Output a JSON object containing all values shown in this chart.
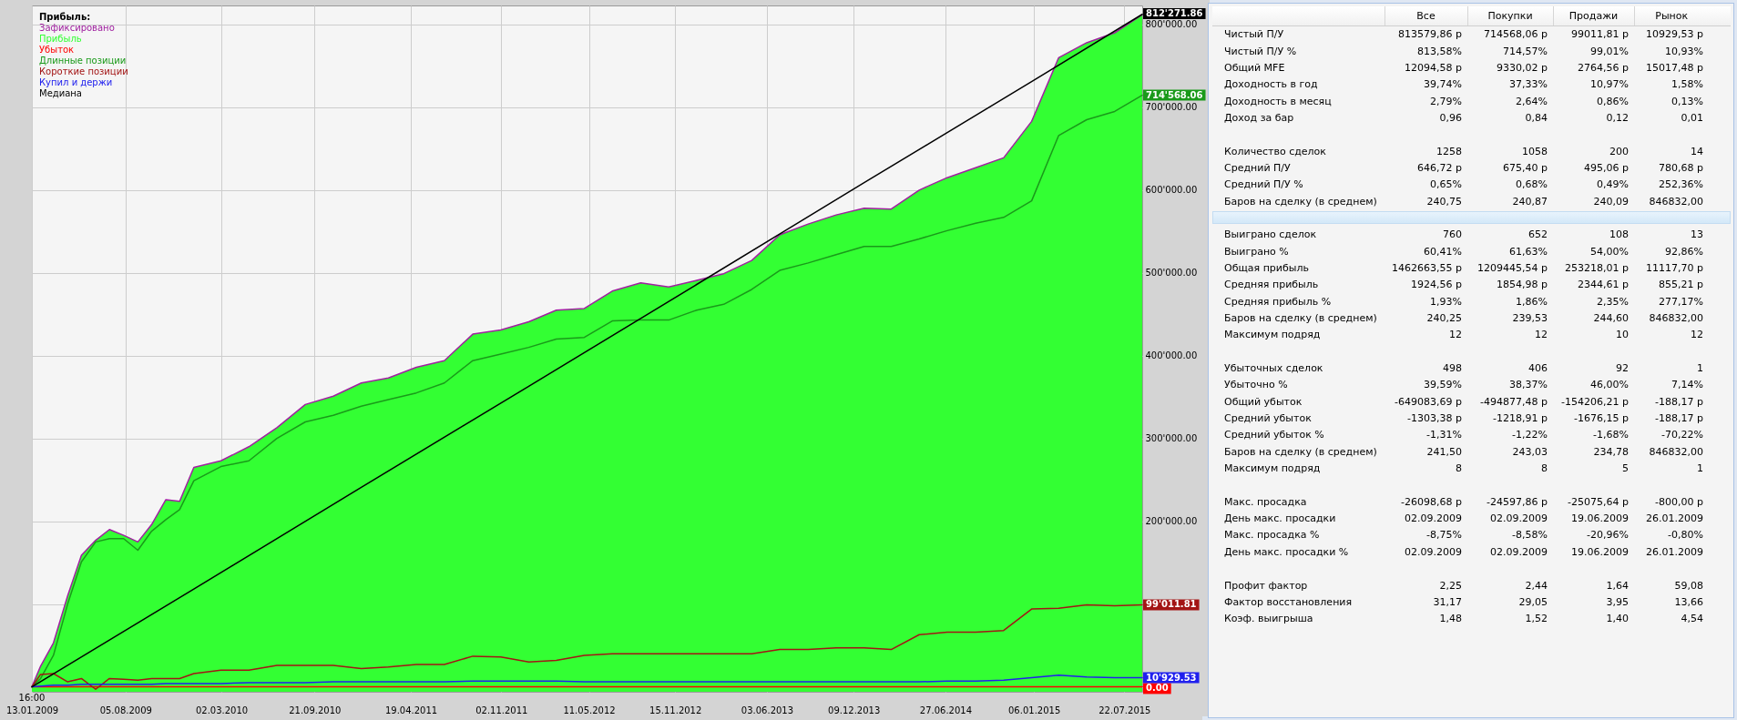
{
  "chart_data": [
    {
      "type": "line",
      "legend_title": "Прибыль:",
      "legend": "top left",
      "grid": true,
      "annotations": [
        "16:00"
      ],
      "x": [
        "2009-01-13",
        "2009-02-01",
        "2009-03-01",
        "2009-04-01",
        "2009-05-01",
        "2009-06-01",
        "2009-07-01",
        "2009-08-01",
        "2009-09-01",
        "2009-10-01",
        "2009-11-01",
        "2009-12-01",
        "2010-01-01",
        "2010-03-01",
        "2010-05-01",
        "2010-07-01",
        "2010-09-01",
        "2010-11-01",
        "2011-01-01",
        "2011-03-01",
        "2011-05-01",
        "2011-07-01",
        "2011-09-01",
        "2011-11-01",
        "2012-01-01",
        "2012-03-01",
        "2012-05-01",
        "2012-07-01",
        "2012-09-01",
        "2012-11-01",
        "2013-01-01",
        "2013-03-01",
        "2013-05-01",
        "2013-07-01",
        "2013-09-01",
        "2013-11-01",
        "2014-01-01",
        "2014-03-01",
        "2014-05-01",
        "2014-07-01",
        "2014-09-01",
        "2014-11-01",
        "2015-01-01",
        "2015-03-01",
        "2015-05-01",
        "2015-07-01",
        "2015-08-30"
      ],
      "xlim": [
        "2009-01-13",
        "2015-08-30"
      ],
      "xticks": [
        {
          "value": "2009-01-13",
          "label": "13.01.2009"
        },
        {
          "value": "2009-08-05",
          "label": "05.08.2009"
        },
        {
          "value": "2010-03-02",
          "label": "02.03.2010"
        },
        {
          "value": "2010-09-21",
          "label": "21.09.2010"
        },
        {
          "value": "2011-04-19",
          "label": "19.04.2011"
        },
        {
          "value": "2011-11-02",
          "label": "02.11.2011"
        },
        {
          "value": "2012-05-11",
          "label": "11.05.2012"
        },
        {
          "value": "2012-11-15",
          "label": "15.11.2012"
        },
        {
          "value": "2013-06-03",
          "label": "03.06.2013"
        },
        {
          "value": "2013-12-09",
          "label": "09.12.2013"
        },
        {
          "value": "2014-06-27",
          "label": "27.06.2014"
        },
        {
          "value": "2015-01-06",
          "label": "06.01.2015"
        },
        {
          "value": "2015-07-22",
          "label": "22.07.2015"
        }
      ],
      "ylim": [
        -6000,
        823000
      ],
      "yticks": [
        {
          "value": 0,
          "label": null
        },
        {
          "value": 100000,
          "label": null
        },
        {
          "value": 200000,
          "label": "200'000.00"
        },
        {
          "value": 300000,
          "label": "300'000.00"
        },
        {
          "value": 400000,
          "label": "400'000.00"
        },
        {
          "value": 500000,
          "label": "500'000.00"
        },
        {
          "value": 600000,
          "label": "600'000.00"
        },
        {
          "value": 700000,
          "label": "700'000.00"
        },
        {
          "value": 800000,
          "label": "800'000.00"
        }
      ],
      "series": [
        {
          "name": "Зафиксировано",
          "color": "#a020a0",
          "values": [
            0,
            25000,
            53000,
            110000,
            159000,
            177000,
            190000,
            183000,
            175000,
            196000,
            226000,
            224000,
            265000,
            273000,
            290000,
            313000,
            341000,
            351000,
            367000,
            373000,
            386000,
            394000,
            426000,
            431000,
            441000,
            455000,
            457000,
            478000,
            488000,
            483000,
            491000,
            499000,
            515000,
            546000,
            559000,
            570000,
            578000,
            577000,
            600000,
            615000,
            627000,
            639000,
            683000,
            760000,
            778000,
            790000,
            812000
          ]
        },
        {
          "name": "Прибыль",
          "type": "area",
          "color": "#33ff33",
          "values": [
            0,
            25000,
            53000,
            110000,
            159000,
            177000,
            190000,
            183000,
            175000,
            196000,
            226000,
            224000,
            265000,
            273000,
            290000,
            313000,
            341000,
            351000,
            367000,
            373000,
            386000,
            394000,
            426000,
            431000,
            441000,
            455000,
            457000,
            478000,
            488000,
            483000,
            491000,
            499000,
            515000,
            546000,
            559000,
            570000,
            578000,
            577000,
            600000,
            615000,
            627000,
            639000,
            683000,
            760000,
            778000,
            790000,
            812000
          ]
        },
        {
          "name": "Убыток",
          "color": "#ff0000",
          "x": [
            "2009-01-13",
            "2015-08-30"
          ],
          "values": [
            0,
            0
          ],
          "value_labels": [
            null,
            "0.00"
          ]
        },
        {
          "name": "Длинные позиции",
          "color": "#1a9a1a",
          "values": [
            0,
            10000,
            38000,
            100000,
            151000,
            175000,
            179000,
            179000,
            165000,
            188000,
            202000,
            214000,
            249000,
            266000,
            273000,
            300000,
            320000,
            328000,
            339000,
            347000,
            355000,
            367000,
            394000,
            402000,
            410000,
            420000,
            422000,
            442000,
            443000,
            443000,
            455000,
            462000,
            480000,
            503000,
            512000,
            522000,
            532000,
            532000,
            541000,
            551000,
            560000,
            567000,
            587000,
            666000,
            685000,
            695000,
            714568.06
          ],
          "value_labels": [
            null,
            null,
            null,
            null,
            null,
            null,
            null,
            null,
            null,
            null,
            null,
            null,
            null,
            null,
            null,
            null,
            null,
            null,
            null,
            null,
            null,
            null,
            null,
            null,
            null,
            null,
            null,
            null,
            null,
            null,
            null,
            null,
            null,
            null,
            null,
            null,
            null,
            null,
            null,
            null,
            null,
            null,
            null,
            null,
            null,
            null,
            "714'568.06"
          ]
        },
        {
          "name": "Короткие позиции",
          "color": "#a31515",
          "values": [
            0,
            15000,
            16000,
            6000,
            10000,
            -3000,
            10000,
            9000,
            8000,
            10000,
            10000,
            10000,
            16000,
            20000,
            20000,
            26000,
            26000,
            26000,
            22000,
            24000,
            27000,
            27000,
            37000,
            36000,
            30000,
            32000,
            38000,
            40000,
            40000,
            40000,
            40000,
            40000,
            40000,
            45000,
            45000,
            47000,
            47000,
            45000,
            63000,
            66000,
            66000,
            68000,
            94000,
            95000,
            99000,
            98000,
            99011.81
          ],
          "value_labels": [
            null,
            null,
            null,
            null,
            null,
            null,
            null,
            null,
            null,
            null,
            null,
            null,
            null,
            null,
            null,
            null,
            null,
            null,
            null,
            null,
            null,
            null,
            null,
            null,
            null,
            null,
            null,
            null,
            null,
            null,
            null,
            null,
            null,
            null,
            null,
            null,
            null,
            null,
            null,
            null,
            null,
            null,
            null,
            null,
            null,
            null,
            "99'011.81"
          ]
        },
        {
          "name": "Купил и держи",
          "color": "#2020ee",
          "values": [
            0,
            1000,
            2000,
            2000,
            3000,
            3000,
            3000,
            3000,
            3000,
            3000,
            4000,
            4000,
            4000,
            4000,
            5000,
            5000,
            5000,
            6000,
            6000,
            6000,
            6000,
            6000,
            7000,
            7000,
            7000,
            7000,
            6000,
            6000,
            6000,
            6000,
            6000,
            6000,
            6000,
            6000,
            6000,
            6000,
            6000,
            6000,
            6000,
            7000,
            7000,
            8000,
            11000,
            14000,
            12000,
            11000,
            10929.53
          ],
          "value_labels": [
            null,
            null,
            null,
            null,
            null,
            null,
            null,
            null,
            null,
            null,
            null,
            null,
            null,
            null,
            null,
            null,
            null,
            null,
            null,
            null,
            null,
            null,
            null,
            null,
            null,
            null,
            null,
            null,
            null,
            null,
            null,
            null,
            null,
            null,
            null,
            null,
            null,
            null,
            null,
            null,
            null,
            null,
            null,
            null,
            null,
            null,
            "10'929.53"
          ]
        },
        {
          "name": "Медиана",
          "color": "#000000",
          "x": [
            "2009-01-13",
            "2010-01-01",
            "2011-01-01",
            "2012-01-01",
            "2013-01-01",
            "2014-01-01",
            "2015-01-01",
            "2015-08-30"
          ],
          "values": [
            0,
            118000,
            241000,
            363000,
            486000,
            609000,
            731000,
            812271.86
          ],
          "value_labels": [
            null,
            null,
            null,
            null,
            null,
            null,
            null,
            "812'271.86"
          ]
        }
      ]
    },
    {
      "type": "other",
      "categories": [
        "Все",
        "Покупки",
        "Продажи",
        "Рынок"
      ],
      "y_categories": [
        "Чистый П/У",
        "Чистый П/У %",
        "Общий MFE",
        "Доходность в год",
        "Доходность в месяц",
        "Доход за бар",
        null,
        "Количество сделок",
        "Средний П/У",
        "Средний П/У %",
        "Баров на сделку (в среднем)",
        null,
        "Выиграно сделок",
        "Выиграно %",
        "Общая прибыль",
        "Средняя прибыль",
        "Средняя прибыль %",
        "Баров на сделку (в среднем)",
        "Максимум подряд",
        null,
        "Убыточных сделок",
        "Убыточно %",
        "Общий убыток",
        "Средний убыток",
        "Средний убыток %",
        "Баров на сделку (в среднем)",
        "Максимум подряд",
        null,
        "Макс. просадка",
        "День макс. просадки",
        "Макс. просадка %",
        "День макс. просадки %",
        null,
        "Профит фактор",
        "Фактор восстановления",
        "Коэф. выигрыша"
      ],
      "cell_labels": [
        [
          "813579,86 р",
          "714568,06 р",
          "99011,81 р",
          "10929,53 р"
        ],
        [
          "813,58%",
          "714,57%",
          "99,01%",
          "10,93%"
        ],
        [
          "12094,58 р",
          "9330,02 р",
          "2764,56 р",
          "15017,48 р"
        ],
        [
          "39,74%",
          "37,33%",
          "10,97%",
          "1,58%"
        ],
        [
          "2,79%",
          "2,64%",
          "0,86%",
          "0,13%"
        ],
        [
          "0,96",
          "0,84",
          "0,12",
          "0,01"
        ],
        null,
        [
          "1258",
          "1058",
          "200",
          "14"
        ],
        [
          "646,72 р",
          "675,40 р",
          "495,06 р",
          "780,68 р"
        ],
        [
          "0,65%",
          "0,68%",
          "0,49%",
          "252,36%"
        ],
        [
          "240,75",
          "240,87",
          "240,09",
          "846832,00"
        ],
        null,
        [
          "760",
          "652",
          "108",
          "13"
        ],
        [
          "60,41%",
          "61,63%",
          "54,00%",
          "92,86%"
        ],
        [
          "1462663,55 р",
          "1209445,54 р",
          "253218,01 р",
          "11117,70 р"
        ],
        [
          "1924,56 р",
          "1854,98 р",
          "2344,61 р",
          "855,21 р"
        ],
        [
          "1,93%",
          "1,86%",
          "2,35%",
          "277,17%"
        ],
        [
          "240,25",
          "239,53",
          "244,60",
          "846832,00"
        ],
        [
          "12",
          "12",
          "10",
          "12"
        ],
        null,
        [
          "498",
          "406",
          "92",
          "1"
        ],
        [
          "39,59%",
          "38,37%",
          "46,00%",
          "7,14%"
        ],
        [
          "-649083,69 р",
          "-494877,48 р",
          "-154206,21 р",
          "-188,17 р"
        ],
        [
          "-1303,38 р",
          "-1218,91 р",
          "-1676,15 р",
          "-188,17 р"
        ],
        [
          "-1,31%",
          "-1,22%",
          "-1,68%",
          "-70,22%"
        ],
        [
          "241,50",
          "243,03",
          "234,78",
          "846832,00"
        ],
        [
          "8",
          "8",
          "5",
          "1"
        ],
        null,
        [
          "-26098,68 р",
          "-24597,86 р",
          "-25075,64 р",
          "-800,00 р"
        ],
        [
          "02.09.2009",
          "02.09.2009",
          "19.06.2009",
          "26.01.2009"
        ],
        [
          "-8,75%",
          "-8,58%",
          "-20,96%",
          "-0,80%"
        ],
        [
          "02.09.2009",
          "02.09.2009",
          "19.06.2009",
          "26.01.2009"
        ],
        null,
        [
          "2,25",
          "2,44",
          "1,64",
          "59,08"
        ],
        [
          "31,17",
          "29,05",
          "3,95",
          "13,66"
        ],
        [
          "1,48",
          "1,52",
          "1,40",
          "4,54"
        ]
      ]
    }
  ]
}
